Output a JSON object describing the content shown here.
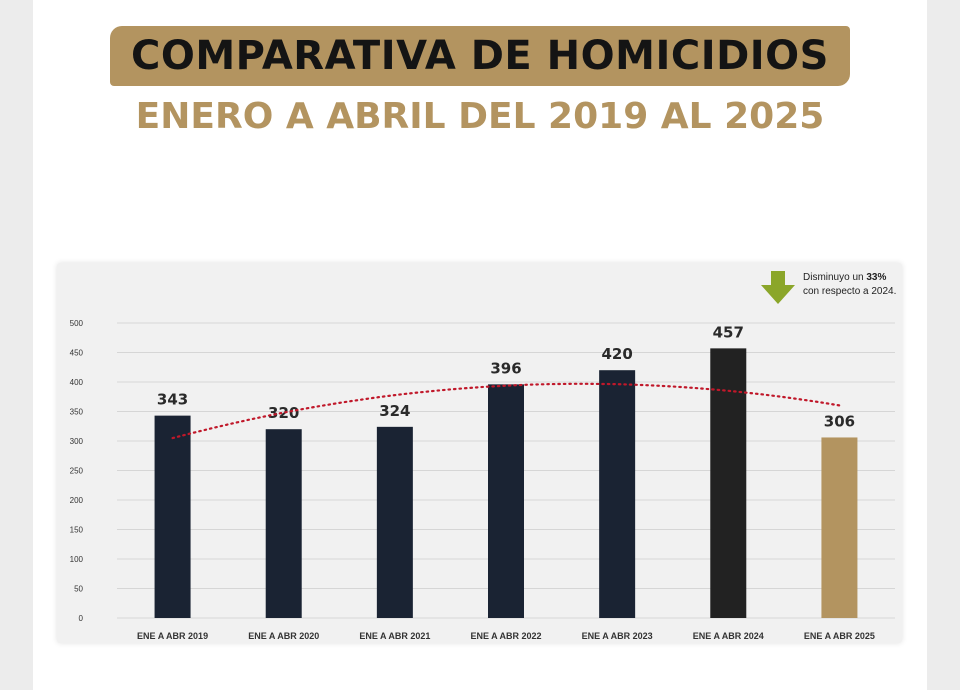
{
  "title": "COMPARATIVA DE HOMICIDIOS",
  "subtitle": "ENERO A ABRIL DEL 2019 AL 2025",
  "annotation": {
    "prefix": "Disminuyo un",
    "highlight": "33%",
    "suffix": "con respecto a 2024.",
    "icon": "arrow-down-icon",
    "icon_color": "#8ba62a"
  },
  "colors": {
    "bar_default": "#1a2333",
    "bar_2024": "#222222",
    "bar_2025": "#b39460",
    "trend": "#c0182a",
    "brand": "#b39460"
  },
  "chart_data": {
    "type": "bar",
    "categories": [
      "ENE A ABR 2019",
      "ENE A ABR 2020",
      "ENE A ABR 2021",
      "ENE A ABR 2022",
      "ENE A ABR 2023",
      "ENE A ABR 2024",
      "ENE A ABR 2025"
    ],
    "values": [
      343,
      320,
      324,
      396,
      420,
      457,
      306
    ],
    "data_labels": [
      "343",
      "320",
      "324",
      "396",
      "420",
      "457",
      "306"
    ],
    "yticks": [
      0,
      50,
      100,
      150,
      200,
      250,
      300,
      350,
      400,
      450,
      500
    ],
    "ylim": [
      0,
      500
    ],
    "grid": true,
    "trendline": "polynomial (dotted)",
    "legend": "none"
  }
}
